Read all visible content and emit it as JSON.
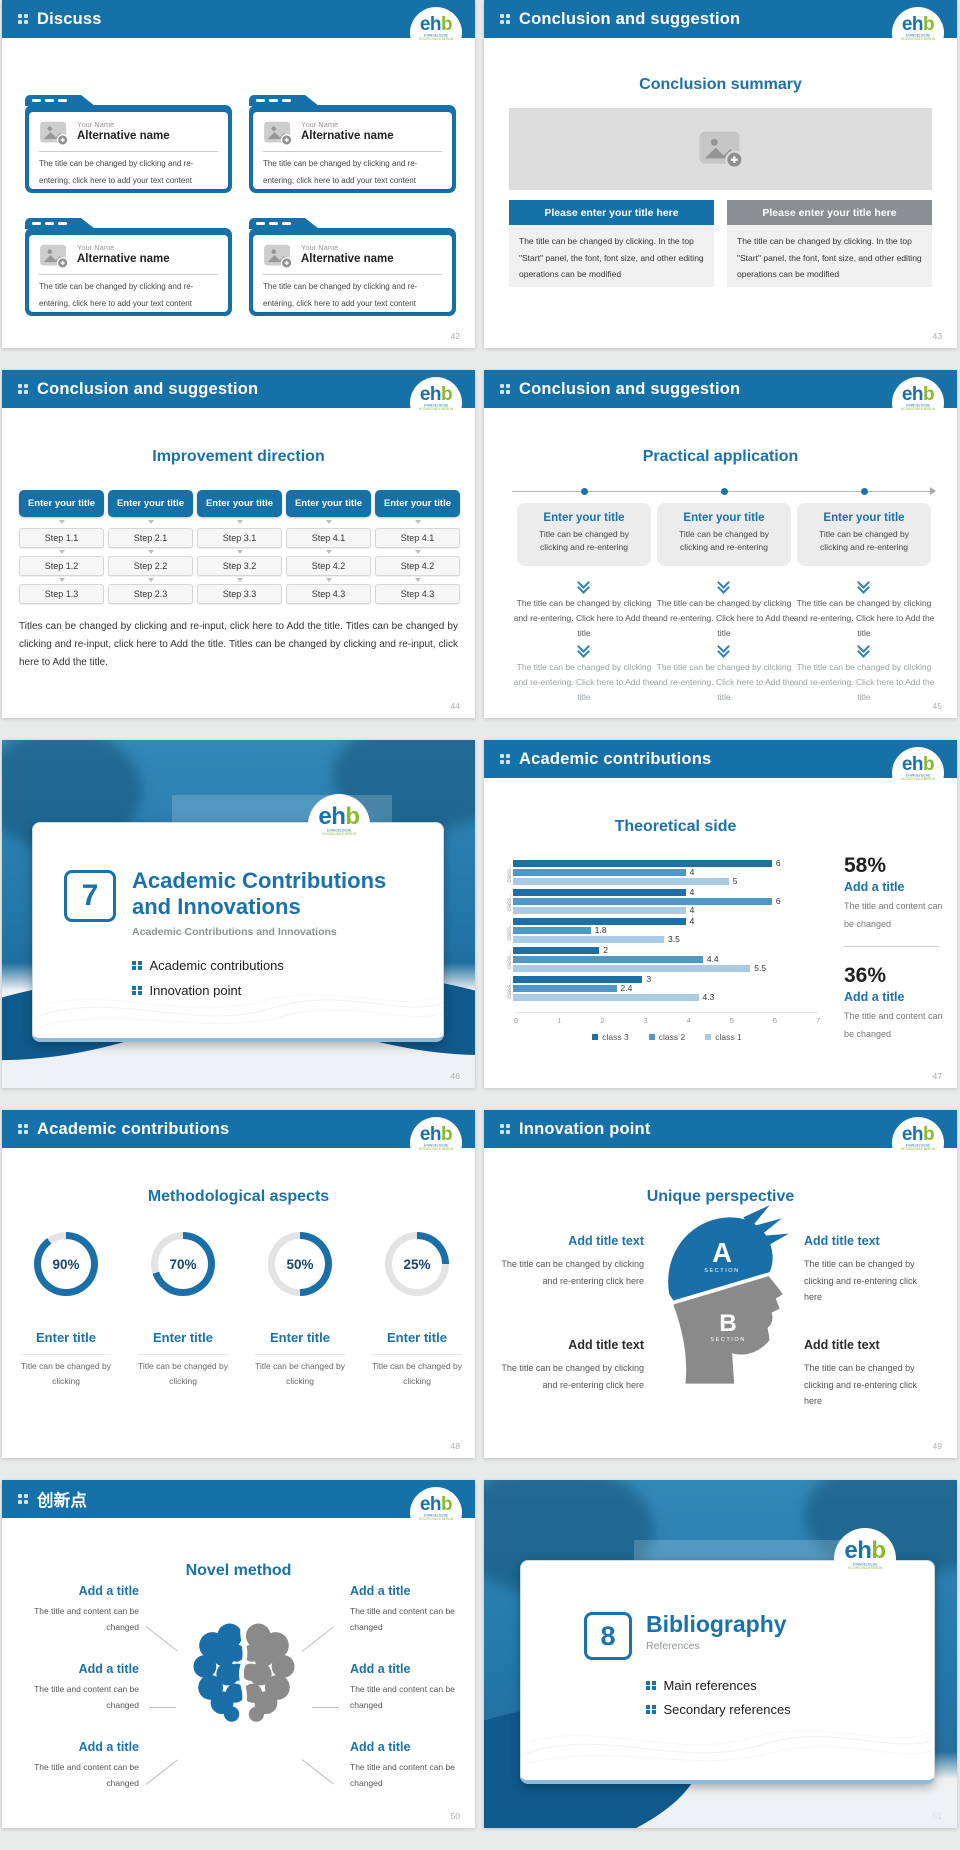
{
  "colors": {
    "header_blue": "#1571a8",
    "accent_blue": "#1a72ad",
    "logo_green": "#8cb82c",
    "box_gray": "#8a8f94",
    "bar_dark": "#1f6fa5",
    "bar_mid": "#4f97c7",
    "bar_light": "#a9cbe3"
  },
  "logo": {
    "eh": "eh",
    "b": "b",
    "sub1": "EVANGELISCHE",
    "sub2": "HOCHSCHULE BERLIN"
  },
  "chart_data": [
    {
      "type": "bar",
      "orientation": "horizontal",
      "title": "Theoretical side",
      "categories": [
        "class…",
        "class…",
        "class…",
        "class…",
        "class…"
      ],
      "series": [
        {
          "name": "class 3",
          "color": "#1f6fa5",
          "values": [
            6,
            4,
            4,
            2,
            3
          ]
        },
        {
          "name": "class 2",
          "color": "#4f97c7",
          "values": [
            4,
            6,
            1.8,
            4.4,
            2.4
          ]
        },
        {
          "name": "class 1",
          "color": "#a9cbe3",
          "values": [
            5,
            4,
            3.5,
            5.5,
            4.3
          ]
        }
      ],
      "xlim": [
        0,
        7
      ],
      "xticks": [
        0,
        1,
        2,
        3,
        4,
        5,
        6,
        7
      ],
      "legend": [
        "class 3",
        "class 2",
        "class 1"
      ],
      "legend_position": "bottom",
      "grid": false
    },
    {
      "type": "donut",
      "title": "Methodological aspects",
      "values": [
        90,
        70,
        50,
        25
      ],
      "unit": "%",
      "color": "#1a6fa8",
      "track_color": "#e3e3e3"
    }
  ],
  "slides": {
    "discuss": {
      "header": "Discuss",
      "page": "42",
      "cards": [
        {
          "name_label": "Your Name",
          "alt_name": "Alternative name",
          "body": "The title can be changed by clicking and re-entering, click here to add your text content"
        },
        {
          "name_label": "Your Name",
          "alt_name": "Alternative name",
          "body": "The title can be changed by clicking and re-entering, click here to add your text content"
        },
        {
          "name_label": "Your Name",
          "alt_name": "Alternative name",
          "body": "The title can be changed by clicking and re-entering, click here to add your text content"
        },
        {
          "name_label": "Your Name",
          "alt_name": "Alternative name",
          "body": "The title can be changed by clicking and re-entering, click here to add your text content"
        }
      ]
    },
    "conclusion_summary": {
      "header": "Conclusion and suggestion",
      "page": "43",
      "title": "Conclusion summary",
      "boxes": [
        {
          "title": "Please enter your title here",
          "body": "The title can be changed by clicking. In the top \"Start\" panel, the font, font size, and other editing operations can be modified"
        },
        {
          "title": "Please enter your title here",
          "body": "The title can be changed by clicking. In the top \"Start\" panel, the font, font size, and other editing operations can be modified"
        }
      ]
    },
    "improvement": {
      "header": "Conclusion and suggestion",
      "page": "44",
      "title": "Improvement direction",
      "columns": [
        {
          "button": "Enter your title",
          "steps": [
            "Step 1.1",
            "Step 1.2",
            "Step 1.3"
          ]
        },
        {
          "button": "Enter your title",
          "steps": [
            "Step 2.1",
            "Step 2.2",
            "Step 2.3"
          ]
        },
        {
          "button": "Enter your title",
          "steps": [
            "Step 3.1",
            "Step 3.2",
            "Step 3.3"
          ]
        },
        {
          "button": "Enter your title",
          "steps": [
            "Step 4.1",
            "Step 4.2",
            "Step 4.3"
          ]
        },
        {
          "button": "Enter your title",
          "steps": [
            "Step 4.1",
            "Step 4.2",
            "Step 4.3"
          ]
        }
      ],
      "paragraph": "Titles can be changed by clicking and re-input, click here to Add the title. Titles can be changed by clicking and re-input, click here to Add the title. Titles can be changed by clicking and re-input, click here to Add the title."
    },
    "practical": {
      "header": "Conclusion and suggestion",
      "page": "45",
      "title": "Practical application",
      "columns": [
        {
          "title": "Enter your title",
          "subtitle": "Title can be changed by clicking and re-entering",
          "step1": "The title can be changed by clicking and re-entering. Click here to Add the title",
          "step2": "The title can be changed by clicking and re-entering. Click here to Add the title"
        },
        {
          "title": "Enter your title",
          "subtitle": "Title can be changed by clicking and re-entering",
          "step1": "The title can be changed by clicking and re-entering. Click here to Add the title",
          "step2": "The title can be changed by clicking and re-entering. Click here to Add the title"
        },
        {
          "title": "Enter your title",
          "subtitle": "Title can be changed by clicking and re-entering",
          "step1": "The title can be changed by clicking and re-entering. Click here to Add the title",
          "step2": "The title can be changed by clicking and re-entering. Click here to Add the title"
        }
      ]
    },
    "cover7": {
      "page": "46",
      "number": "7",
      "title_line1": "Academic Contributions",
      "title_line2": "and Innovations",
      "subtitle": "Academic Contributions and Innovations",
      "items": [
        "Academic contributions",
        "Innovation point"
      ]
    },
    "theoretical": {
      "header": "Academic contributions",
      "page": "47",
      "title": "Theoretical side",
      "stats": [
        {
          "percent": "58%",
          "title": "Add a title",
          "body": "The title and content can be changed"
        },
        {
          "percent": "36%",
          "title": "Add a title",
          "body": "The title and content can be changed"
        }
      ]
    },
    "methodological": {
      "header": "Academic contributions",
      "page": "48",
      "title": "Methodological aspects",
      "donuts": [
        {
          "title": "Enter title",
          "body": "Title can be changed by clicking"
        },
        {
          "title": "Enter title",
          "body": "Title can be changed by clicking"
        },
        {
          "title": "Enter title",
          "body": "Title can be changed by clicking"
        },
        {
          "title": "Enter title",
          "body": "Title can be changed by clicking"
        }
      ]
    },
    "unique": {
      "header": "Innovation point",
      "page": "49",
      "title": "Unique perspective",
      "head": {
        "a": "A",
        "a_sub": "SECTION",
        "b": "B",
        "b_sub": "SECTION"
      },
      "left": [
        {
          "title": "Add title text",
          "body": "The title can be changed by clicking and re-entering click here"
        },
        {
          "title": "Add title text",
          "body": "The title can be changed by clicking and re-entering click here"
        }
      ],
      "right": [
        {
          "title": "Add title text",
          "body": "The title can be changed by clicking and re-entering click here"
        },
        {
          "title": "Add title text",
          "body": "The title can be changed by clicking and re-entering click here"
        }
      ]
    },
    "novel": {
      "header": "创新点",
      "page": "50",
      "title": "Novel method",
      "left": [
        {
          "title": "Add a title",
          "body": "The title and content can be changed"
        },
        {
          "title": "Add a title",
          "body": "The title and content can be changed"
        },
        {
          "title": "Add a title",
          "body": "The title and content can be changed"
        }
      ],
      "right": [
        {
          "title": "Add a title",
          "body": "The title and content can be changed"
        },
        {
          "title": "Add a title",
          "body": "The title and content can be changed"
        },
        {
          "title": "Add a title",
          "body": "The title and content can be changed"
        }
      ]
    },
    "bibliography": {
      "page": "51",
      "number": "8",
      "title": "Bibliography",
      "subtitle": "References",
      "items": [
        "Main references",
        "Secondary references"
      ]
    }
  }
}
